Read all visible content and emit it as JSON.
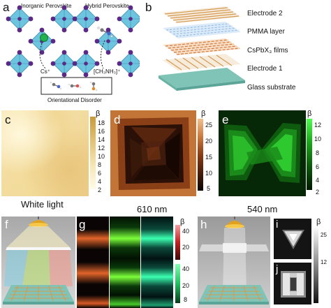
{
  "colors": {
    "octahedron": "#6cc4df",
    "cation_inorganic": "#22b14c",
    "lattice_atom": "#5b2a86",
    "glass": "#7fc4b6",
    "white_map": [
      "#fffbe8",
      "#f6e6b3",
      "#e3c074",
      "#c99b38"
    ],
    "nm610_map": [
      "#0b0604",
      "#4b1e0a",
      "#8a3c14",
      "#cc7a3c",
      "#f0c090"
    ],
    "nm540_map": [
      "#001a00",
      "#0b5a0b",
      "#18a818",
      "#4dff4d"
    ]
  },
  "panel_a": {
    "letter": "a",
    "inorganic_title": "Inorganic Perovskite",
    "hybrid_title": "Hybrid Perovskite",
    "cs_label": "Cs⁺",
    "ch3nh3_label": "[CH₃NH₃]⁺",
    "disorder_label": "Orientational Disorder"
  },
  "panel_b": {
    "letter": "b",
    "layers": [
      "Electrode 2",
      "PMMA layer",
      "CsPbX₃ films",
      "Electrode 1",
      "Glass substrate"
    ]
  },
  "panel_c": {
    "letter": "c",
    "caption": "White light",
    "colorbar_symbol": "β",
    "colorbar_ticks": [
      "18",
      "16",
      "14",
      "12",
      "10",
      "8",
      "6",
      "4",
      "2"
    ]
  },
  "panel_d": {
    "letter": "d",
    "caption": "610 nm",
    "colorbar_symbol": "β",
    "colorbar_ticks": [
      "25",
      "20",
      "15",
      "10",
      "5"
    ]
  },
  "panel_e": {
    "letter": "e",
    "caption": "540 nm",
    "colorbar_symbol": "β",
    "colorbar_ticks": [
      "12",
      "10",
      "8",
      "6",
      "4",
      "2"
    ]
  },
  "panel_f": {
    "letter": "f"
  },
  "panel_g": {
    "letter": "g",
    "colorbar_symbol": "β",
    "red_ticks": [
      "40",
      "20"
    ],
    "green_ticks": [
      "40",
      "20",
      "8"
    ]
  },
  "panel_h": {
    "letter": "h"
  },
  "panel_i": {
    "letter": "i",
    "colorbar_symbol": "β",
    "colorbar_ticks": [
      "25",
      "12"
    ]
  },
  "panel_j": {
    "letter": "j"
  }
}
